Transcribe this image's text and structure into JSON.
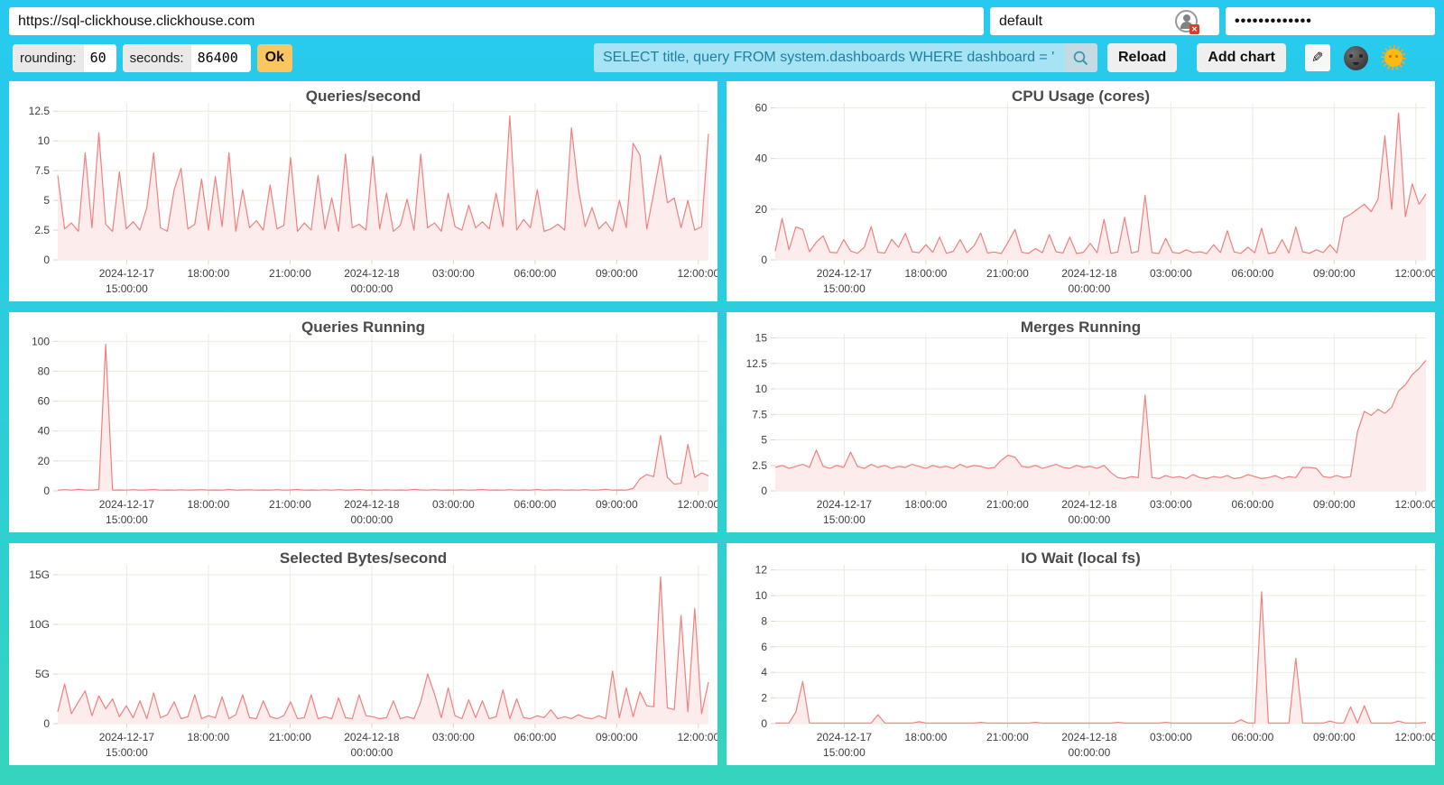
{
  "topbar": {
    "url_value": "https://sql-clickhouse.clickhouse.com",
    "user_value": "default",
    "password_value": "•••••••••••••",
    "user_status_badge": "✕",
    "rounding_label": "rounding:",
    "rounding_value": "60",
    "seconds_label": "seconds:",
    "seconds_value": "86400",
    "ok_label": "Ok",
    "query_value": "SELECT title, query FROM system.dashboards WHERE dashboard = '",
    "reload_label": "Reload",
    "add_chart_label": "Add chart",
    "edit_icon_glyph": "✎",
    "icons": {
      "search": "magnifier-icon",
      "edit": "pencil-icon",
      "theme_dark": "moon-face-icon",
      "theme_light": "sun-face-icon",
      "user_status": "user-circle-error-icon"
    }
  },
  "colors": {
    "line": "#f08080",
    "fill": "#fcecec",
    "grid": "#ece9dd",
    "tick_stub": "#d9d6cc",
    "ok_button": "#fcc65f",
    "query_bg": "#a6e4f5",
    "query_text": "#1e7f9e",
    "search_bg": "#c4dbe4",
    "search_glyph": "#3895ac",
    "button_bg": "#efefef",
    "card_bg": "#ffffff",
    "title_text": "#4a4a4a",
    "background_top": "#27c9f0",
    "background_bottom": "#35d4bd"
  },
  "x_axis": {
    "range": "2024-12-17 ~12:26:00 to 2024-12-18 ~12:26:00",
    "ticks": [
      {
        "l1": "2024-12-17",
        "l2": "15:00:00",
        "f": 0.106
      },
      {
        "l1": "18:00:00",
        "f": 0.2315
      },
      {
        "l1": "21:00:00",
        "f": 0.357
      },
      {
        "l1": "2024-12-18",
        "l2": "00:00:00",
        "f": 0.4825
      },
      {
        "l1": "03:00:00",
        "f": 0.608
      },
      {
        "l1": "06:00:00",
        "f": 0.7335
      },
      {
        "l1": "09:00:00",
        "f": 0.859
      },
      {
        "l1": "12:00:00",
        "f": 0.9845
      }
    ]
  },
  "chart_data": [
    {
      "type": "area",
      "title": "Queries/second",
      "ylim": [
        0,
        13.2
      ],
      "yticks": [
        {
          "label": "0",
          "v": 0
        },
        {
          "label": "2.5",
          "v": 2.5
        },
        {
          "label": "5",
          "v": 5
        },
        {
          "label": "7.5",
          "v": 7.5
        },
        {
          "label": "10",
          "v": 10
        },
        {
          "label": "12.5",
          "v": 12.5
        }
      ],
      "values": [
        7.1,
        2.6,
        3.1,
        2.4,
        9.0,
        2.7,
        10.7,
        3.0,
        2.4,
        7.4,
        2.6,
        3.2,
        2.5,
        4.4,
        9.0,
        2.7,
        2.4,
        5.9,
        7.7,
        2.6,
        3.0,
        6.8,
        2.5,
        7.0,
        2.8,
        9.0,
        2.4,
        5.9,
        2.7,
        3.3,
        2.5,
        6.3,
        2.6,
        2.9,
        8.6,
        2.4,
        3.1,
        2.5,
        7.1,
        2.6,
        5.2,
        2.4,
        8.9,
        2.7,
        3.0,
        2.5,
        8.7,
        2.6,
        5.6,
        2.4,
        2.9,
        5.1,
        2.5,
        8.9,
        2.7,
        3.1,
        2.4,
        5.6,
        2.8,
        2.5,
        4.6,
        2.7,
        3.2,
        2.6,
        5.6,
        2.8,
        12.1,
        2.5,
        3.4,
        2.7,
        5.9,
        2.4,
        2.6,
        3.0,
        2.5,
        11.1,
        6.0,
        2.8,
        4.4,
        2.6,
        3.2,
        2.4,
        5.0,
        2.7,
        9.8,
        8.8,
        2.6,
        5.6,
        8.8,
        4.8,
        5.2,
        2.7,
        5.0,
        2.5,
        2.8,
        10.6
      ]
    },
    {
      "type": "area",
      "title": "CPU Usage (cores)",
      "ylim": [
        0,
        62
      ],
      "yticks": [
        {
          "label": "0",
          "v": 0
        },
        {
          "label": "20",
          "v": 20
        },
        {
          "label": "40",
          "v": 40
        },
        {
          "label": "60",
          "v": 60
        }
      ],
      "values": [
        3.5,
        16.4,
        4.0,
        13.0,
        12.0,
        3.2,
        7.0,
        9.5,
        3.0,
        2.8,
        8.0,
        3.5,
        2.6,
        5.0,
        13.2,
        3.0,
        2.7,
        8.1,
        5.0,
        10.5,
        3.2,
        2.8,
        6.0,
        3.0,
        9.0,
        2.6,
        3.4,
        8.0,
        2.9,
        5.5,
        10.6,
        2.7,
        3.1,
        2.5,
        7.0,
        12.0,
        3.0,
        2.6,
        4.5,
        2.8,
        10.0,
        3.2,
        2.7,
        9.0,
        2.5,
        3.0,
        6.5,
        2.8,
        16.0,
        2.6,
        3.1,
        16.8,
        2.7,
        3.4,
        25.5,
        2.9,
        2.5,
        8.5,
        3.0,
        2.6,
        4.0,
        2.8,
        3.2,
        2.5,
        6.0,
        2.9,
        11.5,
        3.1,
        2.6,
        5.0,
        2.8,
        12.5,
        2.5,
        3.0,
        8.0,
        2.7,
        13.0,
        3.2,
        2.6,
        4.0,
        2.9,
        6.0,
        2.7,
        16.5,
        18.0,
        20.0,
        22.0,
        19.0,
        24.0,
        49.0,
        20.0,
        58.0,
        17.0,
        30.0,
        22.0,
        26.0
      ]
    },
    {
      "type": "area",
      "title": "Queries Running",
      "ylim": [
        0,
        105
      ],
      "yticks": [
        {
          "label": "0",
          "v": 0
        },
        {
          "label": "20",
          "v": 20
        },
        {
          "label": "40",
          "v": 40
        },
        {
          "label": "60",
          "v": 60
        },
        {
          "label": "80",
          "v": 80
        },
        {
          "label": "100",
          "v": 100
        }
      ],
      "values": [
        0.5,
        0.8,
        0.5,
        1.0,
        0.6,
        0.5,
        0.9,
        98.0,
        0.5,
        0.6,
        0.5,
        0.8,
        0.5,
        0.6,
        0.9,
        0.5,
        0.6,
        0.5,
        0.7,
        0.5,
        0.6,
        0.8,
        0.5,
        0.6,
        0.5,
        0.9,
        0.5,
        0.6,
        0.7,
        0.5,
        0.6,
        0.5,
        0.8,
        0.5,
        0.6,
        0.9,
        0.5,
        0.6,
        0.5,
        0.7,
        0.5,
        0.8,
        0.5,
        0.6,
        0.9,
        0.5,
        0.6,
        0.5,
        0.7,
        0.5,
        0.6,
        0.5,
        1.0,
        0.6,
        0.5,
        0.8,
        0.5,
        0.6,
        0.5,
        0.7,
        0.5,
        0.6,
        0.9,
        0.5,
        0.6,
        0.5,
        0.8,
        0.5,
        0.6,
        0.5,
        0.9,
        0.5,
        0.6,
        0.7,
        0.5,
        0.6,
        0.5,
        0.8,
        0.5,
        0.6,
        1.0,
        0.5,
        0.6,
        0.5,
        1.5,
        8.0,
        11.0,
        9.5,
        37.0,
        9.0,
        4.5,
        5.0,
        31.0,
        9.0,
        12.0,
        10.0
      ]
    },
    {
      "type": "area",
      "title": "Merges Running",
      "ylim": [
        0,
        15.4
      ],
      "yticks": [
        {
          "label": "0",
          "v": 0
        },
        {
          "label": "2.5",
          "v": 2.5
        },
        {
          "label": "5",
          "v": 5
        },
        {
          "label": "7.5",
          "v": 7.5
        },
        {
          "label": "10",
          "v": 10
        },
        {
          "label": "12.5",
          "v": 12.5
        },
        {
          "label": "15",
          "v": 15
        }
      ],
      "values": [
        2.3,
        2.5,
        2.2,
        2.4,
        2.6,
        2.3,
        4.0,
        2.4,
        2.2,
        2.5,
        2.3,
        3.8,
        2.4,
        2.2,
        2.6,
        2.3,
        2.5,
        2.2,
        2.4,
        2.3,
        2.6,
        2.4,
        2.2,
        2.5,
        2.3,
        2.4,
        2.2,
        2.6,
        2.3,
        2.5,
        2.4,
        2.2,
        2.3,
        3.0,
        3.5,
        3.3,
        2.4,
        2.3,
        2.5,
        2.2,
        2.4,
        2.6,
        2.3,
        2.2,
        2.5,
        2.3,
        2.4,
        2.2,
        2.5,
        1.8,
        1.3,
        1.2,
        1.4,
        1.3,
        9.4,
        1.3,
        1.2,
        1.5,
        1.3,
        1.4,
        1.2,
        1.6,
        1.3,
        1.2,
        1.4,
        1.3,
        1.5,
        1.2,
        1.3,
        1.6,
        1.4,
        1.2,
        1.3,
        1.5,
        1.2,
        1.4,
        1.3,
        2.3,
        2.3,
        2.2,
        1.4,
        1.3,
        1.5,
        1.3,
        1.4,
        5.8,
        7.8,
        7.4,
        8.0,
        7.6,
        8.2,
        9.8,
        10.4,
        11.4,
        12.0,
        12.8
      ]
    },
    {
      "type": "area",
      "title": "Selected Bytes/second",
      "unit": "G",
      "ylim": [
        0,
        16
      ],
      "yticks": [
        {
          "label": "0",
          "v": 0
        },
        {
          "label": "5G",
          "v": 5
        },
        {
          "label": "10G",
          "v": 10
        },
        {
          "label": "15G",
          "v": 15
        }
      ],
      "values": [
        1.2,
        4.0,
        1.0,
        2.2,
        3.3,
        0.8,
        2.8,
        1.5,
        2.5,
        0.7,
        1.8,
        0.6,
        2.3,
        0.5,
        3.1,
        0.6,
        0.9,
        2.2,
        0.5,
        0.7,
        2.9,
        0.5,
        0.8,
        0.6,
        2.7,
        0.5,
        0.9,
        2.9,
        0.6,
        0.5,
        2.3,
        0.7,
        0.5,
        0.8,
        2.2,
        0.5,
        0.6,
        2.9,
        0.5,
        0.7,
        0.5,
        2.6,
        0.6,
        0.5,
        2.9,
        0.8,
        0.7,
        0.5,
        0.6,
        2.3,
        0.5,
        0.7,
        0.5,
        2.2,
        5.0,
        3.0,
        0.6,
        3.6,
        0.8,
        0.5,
        2.4,
        0.6,
        2.3,
        0.5,
        0.7,
        3.4,
        0.5,
        2.5,
        0.6,
        0.5,
        0.8,
        0.6,
        1.4,
        0.5,
        0.7,
        0.5,
        0.9,
        0.6,
        0.5,
        0.8,
        0.5,
        5.3,
        0.6,
        3.6,
        0.7,
        3.2,
        1.8,
        1.7,
        14.8,
        1.6,
        1.4,
        10.9,
        1.2,
        11.6,
        1.0,
        4.2
      ]
    },
    {
      "type": "area",
      "title": "IO Wait (local fs)",
      "ylim": [
        0,
        12.4
      ],
      "yticks": [
        {
          "label": "0",
          "v": 0
        },
        {
          "label": "2",
          "v": 2
        },
        {
          "label": "4",
          "v": 4
        },
        {
          "label": "6",
          "v": 6
        },
        {
          "label": "8",
          "v": 8
        },
        {
          "label": "10",
          "v": 10
        },
        {
          "label": "12",
          "v": 12
        }
      ],
      "values": [
        0.05,
        0.05,
        0.05,
        0.9,
        3.3,
        0.05,
        0.05,
        0.05,
        0.05,
        0.05,
        0.05,
        0.05,
        0.05,
        0.05,
        0.05,
        0.7,
        0.05,
        0.05,
        0.05,
        0.05,
        0.05,
        0.15,
        0.05,
        0.05,
        0.05,
        0.05,
        0.05,
        0.05,
        0.05,
        0.05,
        0.1,
        0.05,
        0.05,
        0.05,
        0.05,
        0.05,
        0.05,
        0.05,
        0.1,
        0.05,
        0.05,
        0.05,
        0.05,
        0.05,
        0.05,
        0.05,
        0.05,
        0.05,
        0.05,
        0.05,
        0.1,
        0.05,
        0.05,
        0.05,
        0.05,
        0.05,
        0.05,
        0.1,
        0.05,
        0.05,
        0.05,
        0.05,
        0.05,
        0.05,
        0.05,
        0.05,
        0.05,
        0.05,
        0.3,
        0.05,
        0.05,
        10.3,
        0.05,
        0.05,
        0.05,
        0.05,
        5.1,
        0.05,
        0.05,
        0.05,
        0.05,
        0.2,
        0.05,
        0.05,
        1.3,
        0.05,
        1.4,
        0.05,
        0.05,
        0.05,
        0.05,
        0.2,
        0.05,
        0.05,
        0.05,
        0.1
      ]
    }
  ]
}
